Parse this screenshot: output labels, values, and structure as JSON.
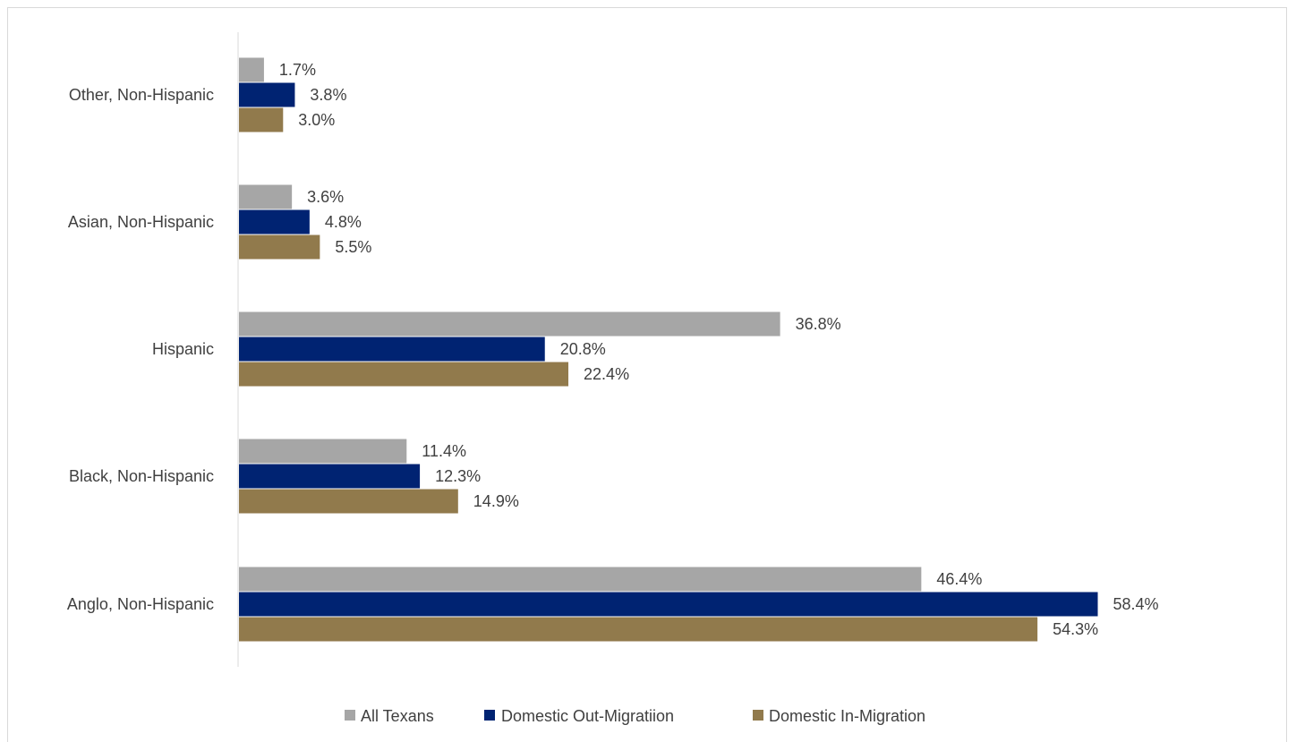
{
  "chart_data": {
    "type": "bar",
    "orientation": "horizontal",
    "categories": [
      "Other, Non-Hispanic",
      "Asian, Non-Hispanic",
      "Hispanic",
      "Black, Non-Hispanic",
      "Anglo, Non-Hispanic"
    ],
    "series": [
      {
        "name": "All Texans",
        "color": "#a6a6a6",
        "values": [
          1.7,
          3.6,
          36.8,
          11.4,
          46.4
        ],
        "labels": [
          "1.7%",
          "3.6%",
          "36.8%",
          "11.4%",
          "46.4%"
        ]
      },
      {
        "name": "Domestic Out-Migratiion",
        "color": "#002372",
        "values": [
          3.8,
          4.8,
          20.8,
          12.3,
          58.4
        ],
        "labels": [
          "3.8%",
          "4.8%",
          "20.8%",
          "12.3%",
          "58.4%"
        ]
      },
      {
        "name": "Domestic In-Migration",
        "color": "#917a4c",
        "values": [
          3.0,
          5.5,
          22.4,
          14.9,
          54.3
        ],
        "labels": [
          "3.0%",
          "5.5%",
          "22.4%",
          "14.9%",
          "54.3%"
        ]
      }
    ],
    "xlim": [
      0,
      70
    ],
    "grid": false,
    "legend_position": "bottom",
    "title": "",
    "xlabel": "",
    "ylabel": ""
  }
}
